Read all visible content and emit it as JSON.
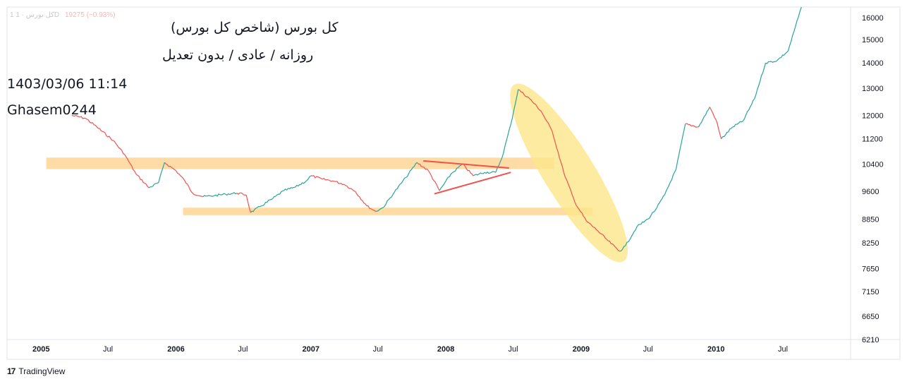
{
  "header": {
    "symbol": "1 کل بورس · 1D",
    "price_change": "19275 (−0.93%)"
  },
  "annotations": {
    "title": "کل بورس (شاخص کل بورس)",
    "subtitle": "روزانه / عادی / بدون تعدیل",
    "datetime": "1403/03/06 11:14",
    "author": "Ghasem0244"
  },
  "brand": {
    "logo": "17",
    "name": "TradingView"
  },
  "colors": {
    "up": "#26a69a",
    "down": "#ef5350",
    "band": "#ffcc80",
    "ellipse": "#fde68a",
    "trendline": "#ef5350"
  },
  "chart_data": {
    "type": "line",
    "scale": "log",
    "ylim": [
      6210,
      16500
    ],
    "xlim": [
      "2004-10-01",
      "2010-12-31"
    ],
    "y_ticks": [
      6210,
      6650,
      7150,
      7650,
      8250,
      8850,
      9600,
      10400,
      11200,
      12000,
      13000,
      14000,
      15000,
      16000
    ],
    "x_ticks": [
      {
        "date": "2005-01-01",
        "label": "2005",
        "year": true
      },
      {
        "date": "2005-07-01",
        "label": "Jul",
        "year": false
      },
      {
        "date": "2006-01-01",
        "label": "2006",
        "year": true
      },
      {
        "date": "2006-07-01",
        "label": "Jul",
        "year": false
      },
      {
        "date": "2007-01-01",
        "label": "2007",
        "year": true
      },
      {
        "date": "2007-07-01",
        "label": "Jul",
        "year": false
      },
      {
        "date": "2008-01-01",
        "label": "2008",
        "year": true
      },
      {
        "date": "2008-07-01",
        "label": "Jul",
        "year": false
      },
      {
        "date": "2009-01-01",
        "label": "2009",
        "year": true
      },
      {
        "date": "2009-07-01",
        "label": "Jul",
        "year": false
      },
      {
        "date": "2010-01-01",
        "label": "2010",
        "year": true
      },
      {
        "date": "2010-07-01",
        "label": "Jul",
        "year": false
      }
    ],
    "series": [
      {
        "points": [
          [
            "2005-03-25",
            12000
          ],
          [
            "2005-05-01",
            11900
          ],
          [
            "2005-06-01",
            11600
          ],
          [
            "2005-07-15",
            11150
          ],
          [
            "2005-08-15",
            10700
          ],
          [
            "2005-09-15",
            10100
          ],
          [
            "2005-10-20",
            9700
          ],
          [
            "2005-11-15",
            9850
          ],
          [
            "2005-12-01",
            10450
          ],
          [
            "2006-01-01",
            10200
          ],
          [
            "2006-01-25",
            9900
          ],
          [
            "2006-02-15",
            9550
          ],
          [
            "2006-03-15",
            9450
          ],
          [
            "2006-04-15",
            9480
          ],
          [
            "2006-05-15",
            9520
          ],
          [
            "2006-06-15",
            9550
          ],
          [
            "2006-07-10",
            9500
          ],
          [
            "2006-07-22",
            9020
          ],
          [
            "2006-08-20",
            9200
          ],
          [
            "2006-09-20",
            9400
          ],
          [
            "2006-10-20",
            9620
          ],
          [
            "2006-11-20",
            9720
          ],
          [
            "2006-12-20",
            9900
          ],
          [
            "2007-01-01",
            10050
          ],
          [
            "2007-02-01",
            9950
          ],
          [
            "2007-03-01",
            9900
          ],
          [
            "2007-04-01",
            9800
          ],
          [
            "2007-05-01",
            9600
          ],
          [
            "2007-06-01",
            9200
          ],
          [
            "2007-06-25",
            9050
          ],
          [
            "2007-07-15",
            9150
          ],
          [
            "2007-08-15",
            9580
          ],
          [
            "2007-09-15",
            10000
          ],
          [
            "2007-10-15",
            10450
          ],
          [
            "2007-11-15",
            10200
          ],
          [
            "2007-12-15",
            9620
          ],
          [
            "2008-01-15",
            10100
          ],
          [
            "2008-02-15",
            10400
          ],
          [
            "2008-03-15",
            10050
          ],
          [
            "2008-04-15",
            10150
          ],
          [
            "2008-05-15",
            10150
          ],
          [
            "2008-06-01",
            10600
          ],
          [
            "2008-06-25",
            11700
          ],
          [
            "2008-07-15",
            12950
          ],
          [
            "2008-08-15",
            12600
          ],
          [
            "2008-09-15",
            12150
          ],
          [
            "2008-10-15",
            11450
          ],
          [
            "2008-11-15",
            10150
          ],
          [
            "2008-12-15",
            9300
          ],
          [
            "2009-01-15",
            8800
          ],
          [
            "2009-02-15",
            8550
          ],
          [
            "2009-03-15",
            8300
          ],
          [
            "2009-04-15",
            8050
          ],
          [
            "2009-05-01",
            8180
          ],
          [
            "2009-06-01",
            8650
          ],
          [
            "2009-07-01",
            8850
          ],
          [
            "2009-07-25",
            9150
          ],
          [
            "2009-08-15",
            9500
          ],
          [
            "2009-09-15",
            10250
          ],
          [
            "2009-10-10",
            11700
          ],
          [
            "2009-11-15",
            11600
          ],
          [
            "2009-12-15",
            12300
          ],
          [
            "2010-01-01",
            11850
          ],
          [
            "2010-01-15",
            11200
          ],
          [
            "2010-02-15",
            11600
          ],
          [
            "2010-03-15",
            11800
          ],
          [
            "2010-04-15",
            12600
          ],
          [
            "2010-05-15",
            14000
          ],
          [
            "2010-06-15",
            14100
          ],
          [
            "2010-07-15",
            14500
          ],
          [
            "2010-08-20",
            16500
          ]
        ]
      }
    ],
    "bands": [
      {
        "from": "2005-01-15",
        "to": "2008-10-20",
        "y_low": 10250,
        "y_high": 10600
      },
      {
        "from": "2006-01-20",
        "to": "2009-02-01",
        "y_low": 8950,
        "y_high": 9150
      }
    ],
    "trendlines": [
      {
        "from": [
          "2007-11-01",
          10500
        ],
        "to": [
          "2008-06-20",
          10280
        ]
      },
      {
        "from": [
          "2007-12-01",
          9530
        ],
        "to": [
          "2008-06-25",
          10150
        ]
      }
    ],
    "ellipse": {
      "from": [
        "2008-07-10",
        13000
      ],
      "to": [
        "2009-04-20",
        7900
      ]
    }
  }
}
